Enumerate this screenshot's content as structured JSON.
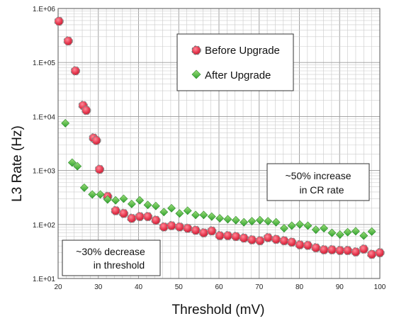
{
  "chart_data": {
    "type": "scatter",
    "xlabel": "Threshold (mV)",
    "ylabel": "L3 Rate (Hz)",
    "x_ticks": [
      "20",
      "30",
      "40",
      "50",
      "60",
      "70",
      "80",
      "90",
      "100"
    ],
    "y_ticks": [
      "1.E+01",
      "1.E+02",
      "1.E+03",
      "1.E+04",
      "1.E+05",
      "1.E+06"
    ],
    "xlim": [
      20,
      100
    ],
    "ylim": [
      10,
      1000000
    ],
    "y_scale": "log",
    "grid": true,
    "legend_position": "top-right",
    "series": [
      {
        "name": "Before Upgrade",
        "marker": "circle",
        "color": "#e8384f",
        "points": [
          [
            20.2,
            580000
          ],
          [
            22.5,
            250000
          ],
          [
            24.3,
            70000
          ],
          [
            26.2,
            16000
          ],
          [
            27.0,
            13000
          ],
          [
            28.8,
            4000
          ],
          [
            29.5,
            3600
          ],
          [
            30.3,
            1050
          ],
          [
            32.3,
            330
          ],
          [
            34.3,
            180
          ],
          [
            36.3,
            160
          ],
          [
            38.3,
            130
          ],
          [
            40.3,
            140
          ],
          [
            42.3,
            140
          ],
          [
            44.3,
            120
          ],
          [
            46.3,
            90
          ],
          [
            48.2,
            95
          ],
          [
            50.2,
            90
          ],
          [
            52.2,
            85
          ],
          [
            54.2,
            78
          ],
          [
            56.2,
            70
          ],
          [
            58.2,
            76
          ],
          [
            60.2,
            62
          ],
          [
            62.2,
            62
          ],
          [
            64.2,
            60
          ],
          [
            66.2,
            56
          ],
          [
            68.2,
            52
          ],
          [
            70.2,
            50
          ],
          [
            72.2,
            57
          ],
          [
            74.2,
            53
          ],
          [
            76.2,
            50
          ],
          [
            78.1,
            47
          ],
          [
            80.1,
            42
          ],
          [
            82.1,
            41
          ],
          [
            84.1,
            37
          ],
          [
            86.1,
            34
          ],
          [
            88.1,
            34
          ],
          [
            90.1,
            33
          ],
          [
            92.0,
            33
          ],
          [
            94.0,
            31
          ],
          [
            96.0,
            35
          ],
          [
            98.0,
            28
          ],
          [
            100.0,
            30
          ]
        ]
      },
      {
        "name": "After Upgrade",
        "marker": "diamond",
        "color": "#3ebb3e",
        "points": [
          [
            21.8,
            7500
          ],
          [
            23.5,
            1400
          ],
          [
            24.8,
            1200
          ],
          [
            26.5,
            480
          ],
          [
            28.5,
            360
          ],
          [
            30.5,
            360
          ],
          [
            32.3,
            290
          ],
          [
            34.3,
            280
          ],
          [
            36.3,
            300
          ],
          [
            38.3,
            240
          ],
          [
            40.3,
            280
          ],
          [
            42.3,
            230
          ],
          [
            44.3,
            220
          ],
          [
            46.3,
            170
          ],
          [
            48.2,
            200
          ],
          [
            50.2,
            160
          ],
          [
            52.2,
            180
          ],
          [
            54.2,
            150
          ],
          [
            56.2,
            150
          ],
          [
            58.2,
            140
          ],
          [
            60.2,
            130
          ],
          [
            62.2,
            125
          ],
          [
            64.2,
            120
          ],
          [
            66.2,
            110
          ],
          [
            68.2,
            115
          ],
          [
            70.2,
            120
          ],
          [
            72.2,
            115
          ],
          [
            74.2,
            110
          ],
          [
            76.2,
            85
          ],
          [
            78.1,
            95
          ],
          [
            80.1,
            100
          ],
          [
            82.1,
            95
          ],
          [
            84.1,
            80
          ],
          [
            86.1,
            85
          ],
          [
            88.1,
            70
          ],
          [
            90.1,
            65
          ],
          [
            92.0,
            72
          ],
          [
            94.0,
            75
          ],
          [
            96.0,
            62
          ],
          [
            98.0,
            74
          ]
        ]
      }
    ],
    "annotations": {
      "increase": [
        "~50%  increase",
        "in CR rate"
      ],
      "decrease": [
        "~30%  decrease",
        "in threshold"
      ]
    }
  }
}
